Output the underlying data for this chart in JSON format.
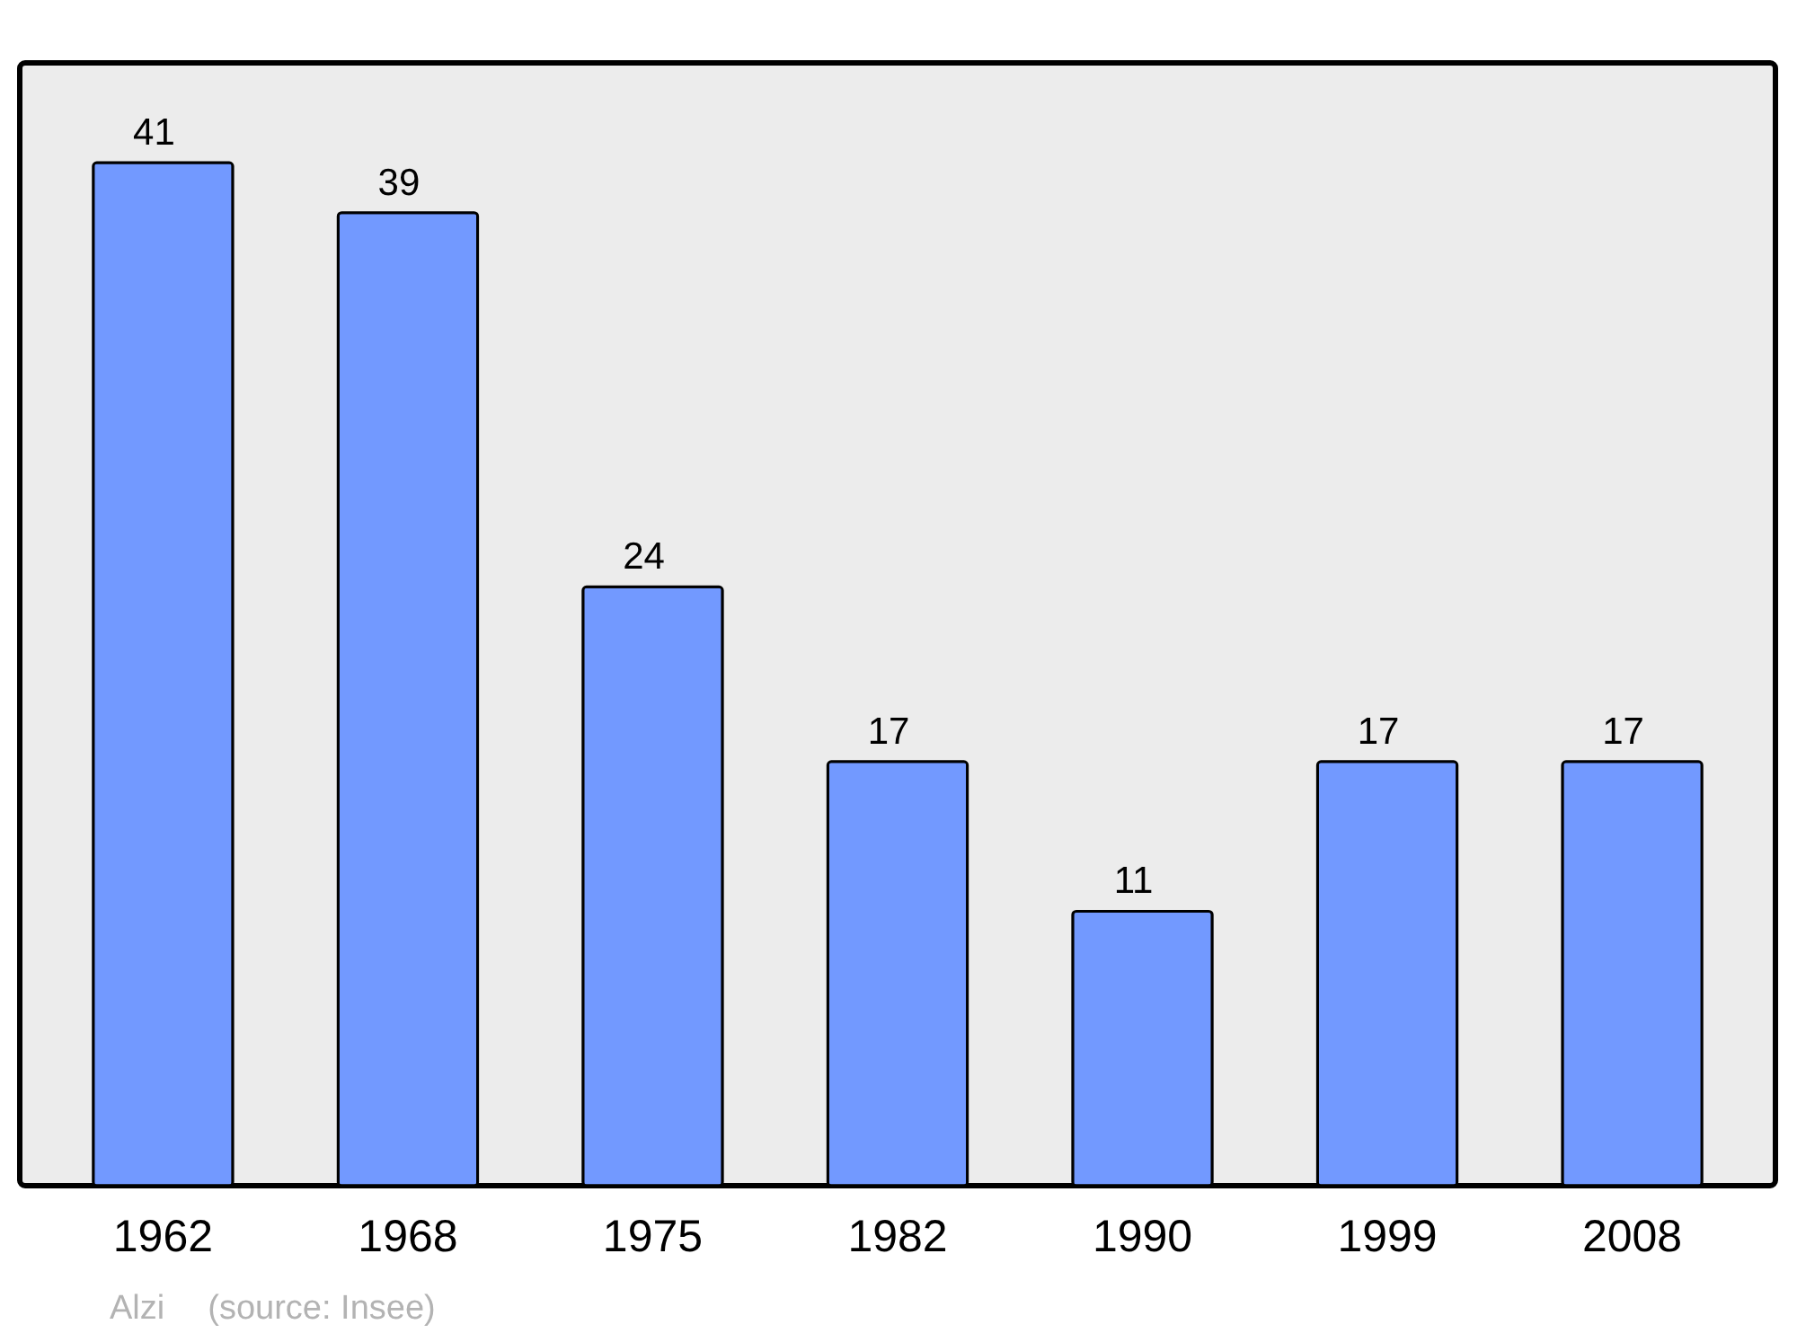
{
  "chart_data": {
    "type": "bar",
    "categories": [
      "1962",
      "1968",
      "1975",
      "1982",
      "1990",
      "1999",
      "2008"
    ],
    "values": [
      41,
      39,
      24,
      17,
      11,
      17,
      17
    ],
    "color": "#7299ff",
    "data_labels": true,
    "grid": false,
    "annotations": [
      "Alzi",
      "(source: Insee)"
    ]
  }
}
